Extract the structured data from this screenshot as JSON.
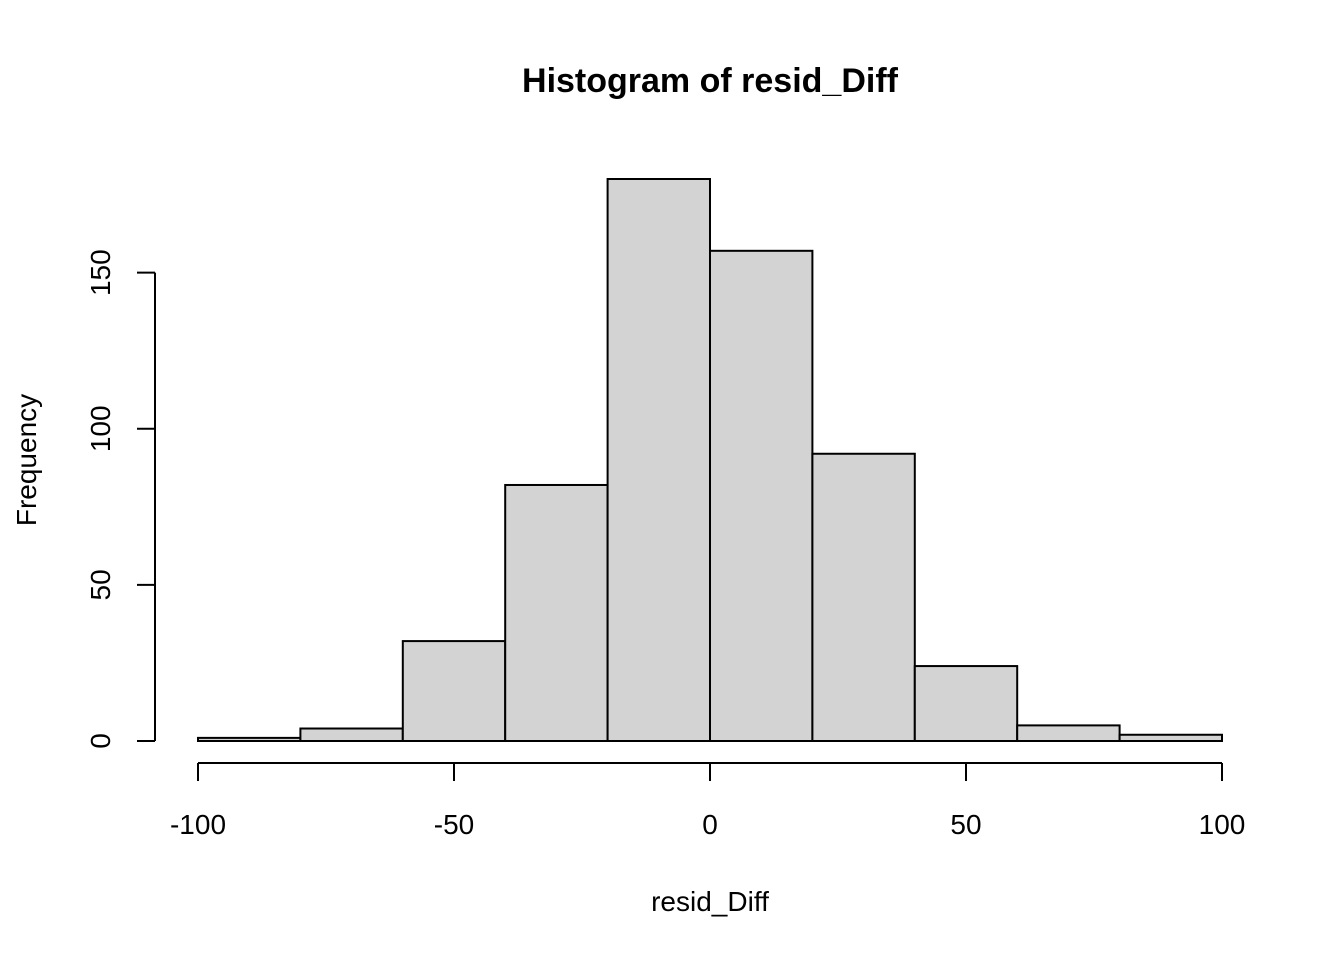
{
  "chart_data": {
    "type": "bar",
    "title": "Histogram of resid_Diff",
    "xlabel": "resid_Diff",
    "ylabel": "Frequency",
    "bin_edges": [
      -100,
      -80,
      -60,
      -40,
      -20,
      0,
      20,
      40,
      60,
      80,
      100
    ],
    "values": [
      1,
      4,
      32,
      82,
      180,
      157,
      92,
      24,
      5,
      2
    ],
    "xlim": [
      -100,
      100
    ],
    "ylim": [
      0,
      180
    ],
    "x_ticks": [
      -100,
      -50,
      0,
      50,
      100
    ],
    "y_ticks": [
      0,
      50,
      100,
      150
    ],
    "bar_color": "#d3d3d3",
    "border_color": "#000000",
    "grid": false,
    "legend": "none"
  }
}
